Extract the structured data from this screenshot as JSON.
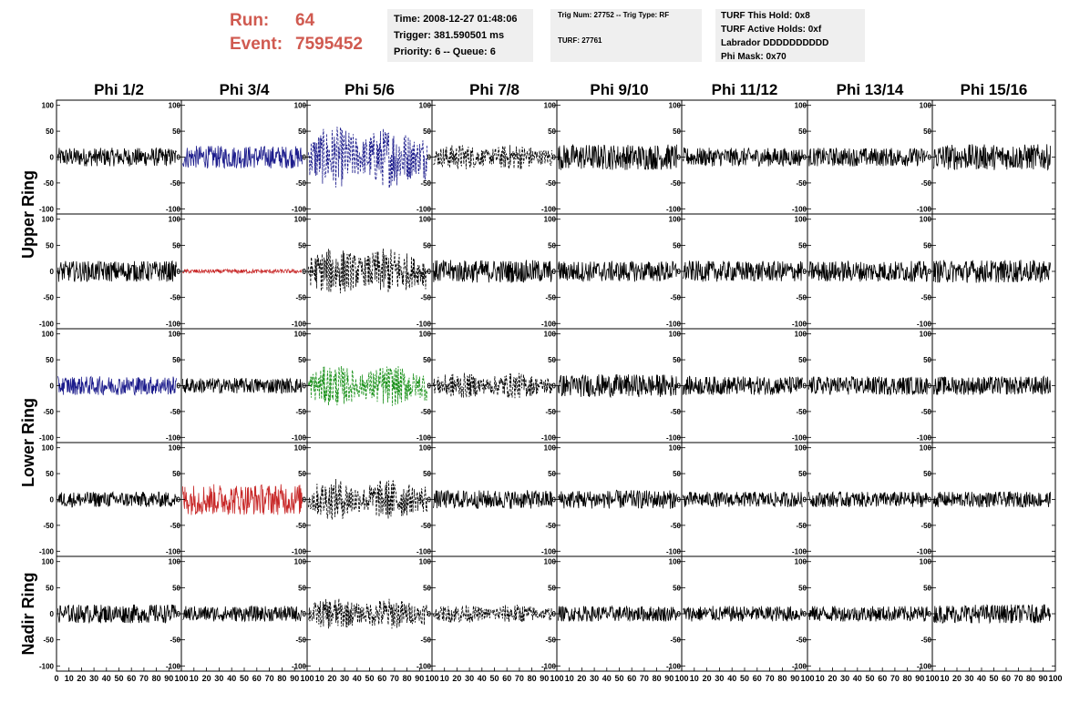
{
  "header": {
    "run_label": "Run:",
    "run_value": "64",
    "event_label": "Event:",
    "event_value": "7595452",
    "time_line": "Time: 2008-12-27 01:48:06",
    "trigger_line": "Trigger: 381.590501 ms",
    "priority_line": "Priority: 6 -- Queue: 6",
    "trig_line": "Trig Num: 27752 -- Trig Type: RF",
    "turf_line": "TURF: 27761",
    "turf_hold_line": "TURF This Hold: 0x8",
    "turf_active_line": "TURF Active Holds: 0xf",
    "labrador_line": "Labrador DDDDDDDDDD",
    "phi_mask_line": "Phi Mask: 0x70"
  },
  "chart_data": {
    "type": "line",
    "columns": [
      "Phi 1/2",
      "Phi 3/4",
      "Phi 5/6",
      "Phi 7/8",
      "Phi 9/10",
      "Phi 11/12",
      "Phi 13/14",
      "Phi 15/16"
    ],
    "ring_labels": [
      {
        "text": "Upper Ring",
        "rows": [
          0,
          1
        ]
      },
      {
        "text": "Lower Ring",
        "rows": [
          2,
          3
        ]
      },
      {
        "text": "Nadir Ring",
        "rows": [
          4
        ]
      }
    ],
    "xlim": [
      0,
      100
    ],
    "ylim": [
      -110,
      110
    ],
    "y_ticks": [
      "100",
      "50",
      "0",
      "-50",
      "-100"
    ],
    "x_ticks_first": [
      "0",
      "10",
      "20",
      "30",
      "40",
      "50",
      "60",
      "70",
      "80",
      "90",
      "100"
    ],
    "x_ticks_rest": [
      "10",
      "20",
      "30",
      "40",
      "50",
      "60",
      "70",
      "80",
      "90",
      "100"
    ],
    "colors": {
      "black": "#000000",
      "blue": "#1c1c8c",
      "red": "#c82828",
      "green": "#189018"
    },
    "panels": [
      [
        {
          "color": "black",
          "dashed": false,
          "amp": 18
        },
        {
          "color": "blue",
          "dashed": false,
          "amp": 22
        },
        {
          "color": "blue",
          "dashed": true,
          "amp": 60
        },
        {
          "color": "black",
          "dashed": true,
          "amp": 25
        },
        {
          "color": "black",
          "dashed": false,
          "amp": 25
        },
        {
          "color": "black",
          "dashed": false,
          "amp": 18
        },
        {
          "color": "black",
          "dashed": false,
          "amp": 18
        },
        {
          "color": "black",
          "dashed": false,
          "amp": 25
        }
      ],
      [
        {
          "color": "black",
          "dashed": false,
          "amp": 20
        },
        {
          "color": "red",
          "dashed": false,
          "amp": 4
        },
        {
          "color": "black",
          "dashed": true,
          "amp": 45
        },
        {
          "color": "black",
          "dashed": false,
          "amp": 22
        },
        {
          "color": "black",
          "dashed": false,
          "amp": 20
        },
        {
          "color": "black",
          "dashed": false,
          "amp": 20
        },
        {
          "color": "black",
          "dashed": false,
          "amp": 20
        },
        {
          "color": "black",
          "dashed": false,
          "amp": 22
        }
      ],
      [
        {
          "color": "blue",
          "dashed": false,
          "amp": 18
        },
        {
          "color": "black",
          "dashed": false,
          "amp": 15
        },
        {
          "color": "green",
          "dashed": true,
          "amp": 40
        },
        {
          "color": "black",
          "dashed": true,
          "amp": 25
        },
        {
          "color": "black",
          "dashed": false,
          "amp": 22
        },
        {
          "color": "black",
          "dashed": false,
          "amp": 18
        },
        {
          "color": "black",
          "dashed": false,
          "amp": 18
        },
        {
          "color": "black",
          "dashed": false,
          "amp": 18
        }
      ],
      [
        {
          "color": "black",
          "dashed": false,
          "amp": 15
        },
        {
          "color": "red",
          "dashed": false,
          "amp": 30
        },
        {
          "color": "black",
          "dashed": true,
          "amp": 40
        },
        {
          "color": "black",
          "dashed": false,
          "amp": 18
        },
        {
          "color": "black",
          "dashed": false,
          "amp": 18
        },
        {
          "color": "black",
          "dashed": false,
          "amp": 15
        },
        {
          "color": "black",
          "dashed": false,
          "amp": 15
        },
        {
          "color": "black",
          "dashed": false,
          "amp": 15
        }
      ],
      [
        {
          "color": "black",
          "dashed": false,
          "amp": 18
        },
        {
          "color": "black",
          "dashed": false,
          "amp": 15
        },
        {
          "color": "black",
          "dashed": true,
          "amp": 30
        },
        {
          "color": "black",
          "dashed": true,
          "amp": 18
        },
        {
          "color": "black",
          "dashed": false,
          "amp": 15
        },
        {
          "color": "black",
          "dashed": false,
          "amp": 15
        },
        {
          "color": "black",
          "dashed": false,
          "amp": 15
        },
        {
          "color": "black",
          "dashed": false,
          "amp": 18
        }
      ]
    ]
  }
}
